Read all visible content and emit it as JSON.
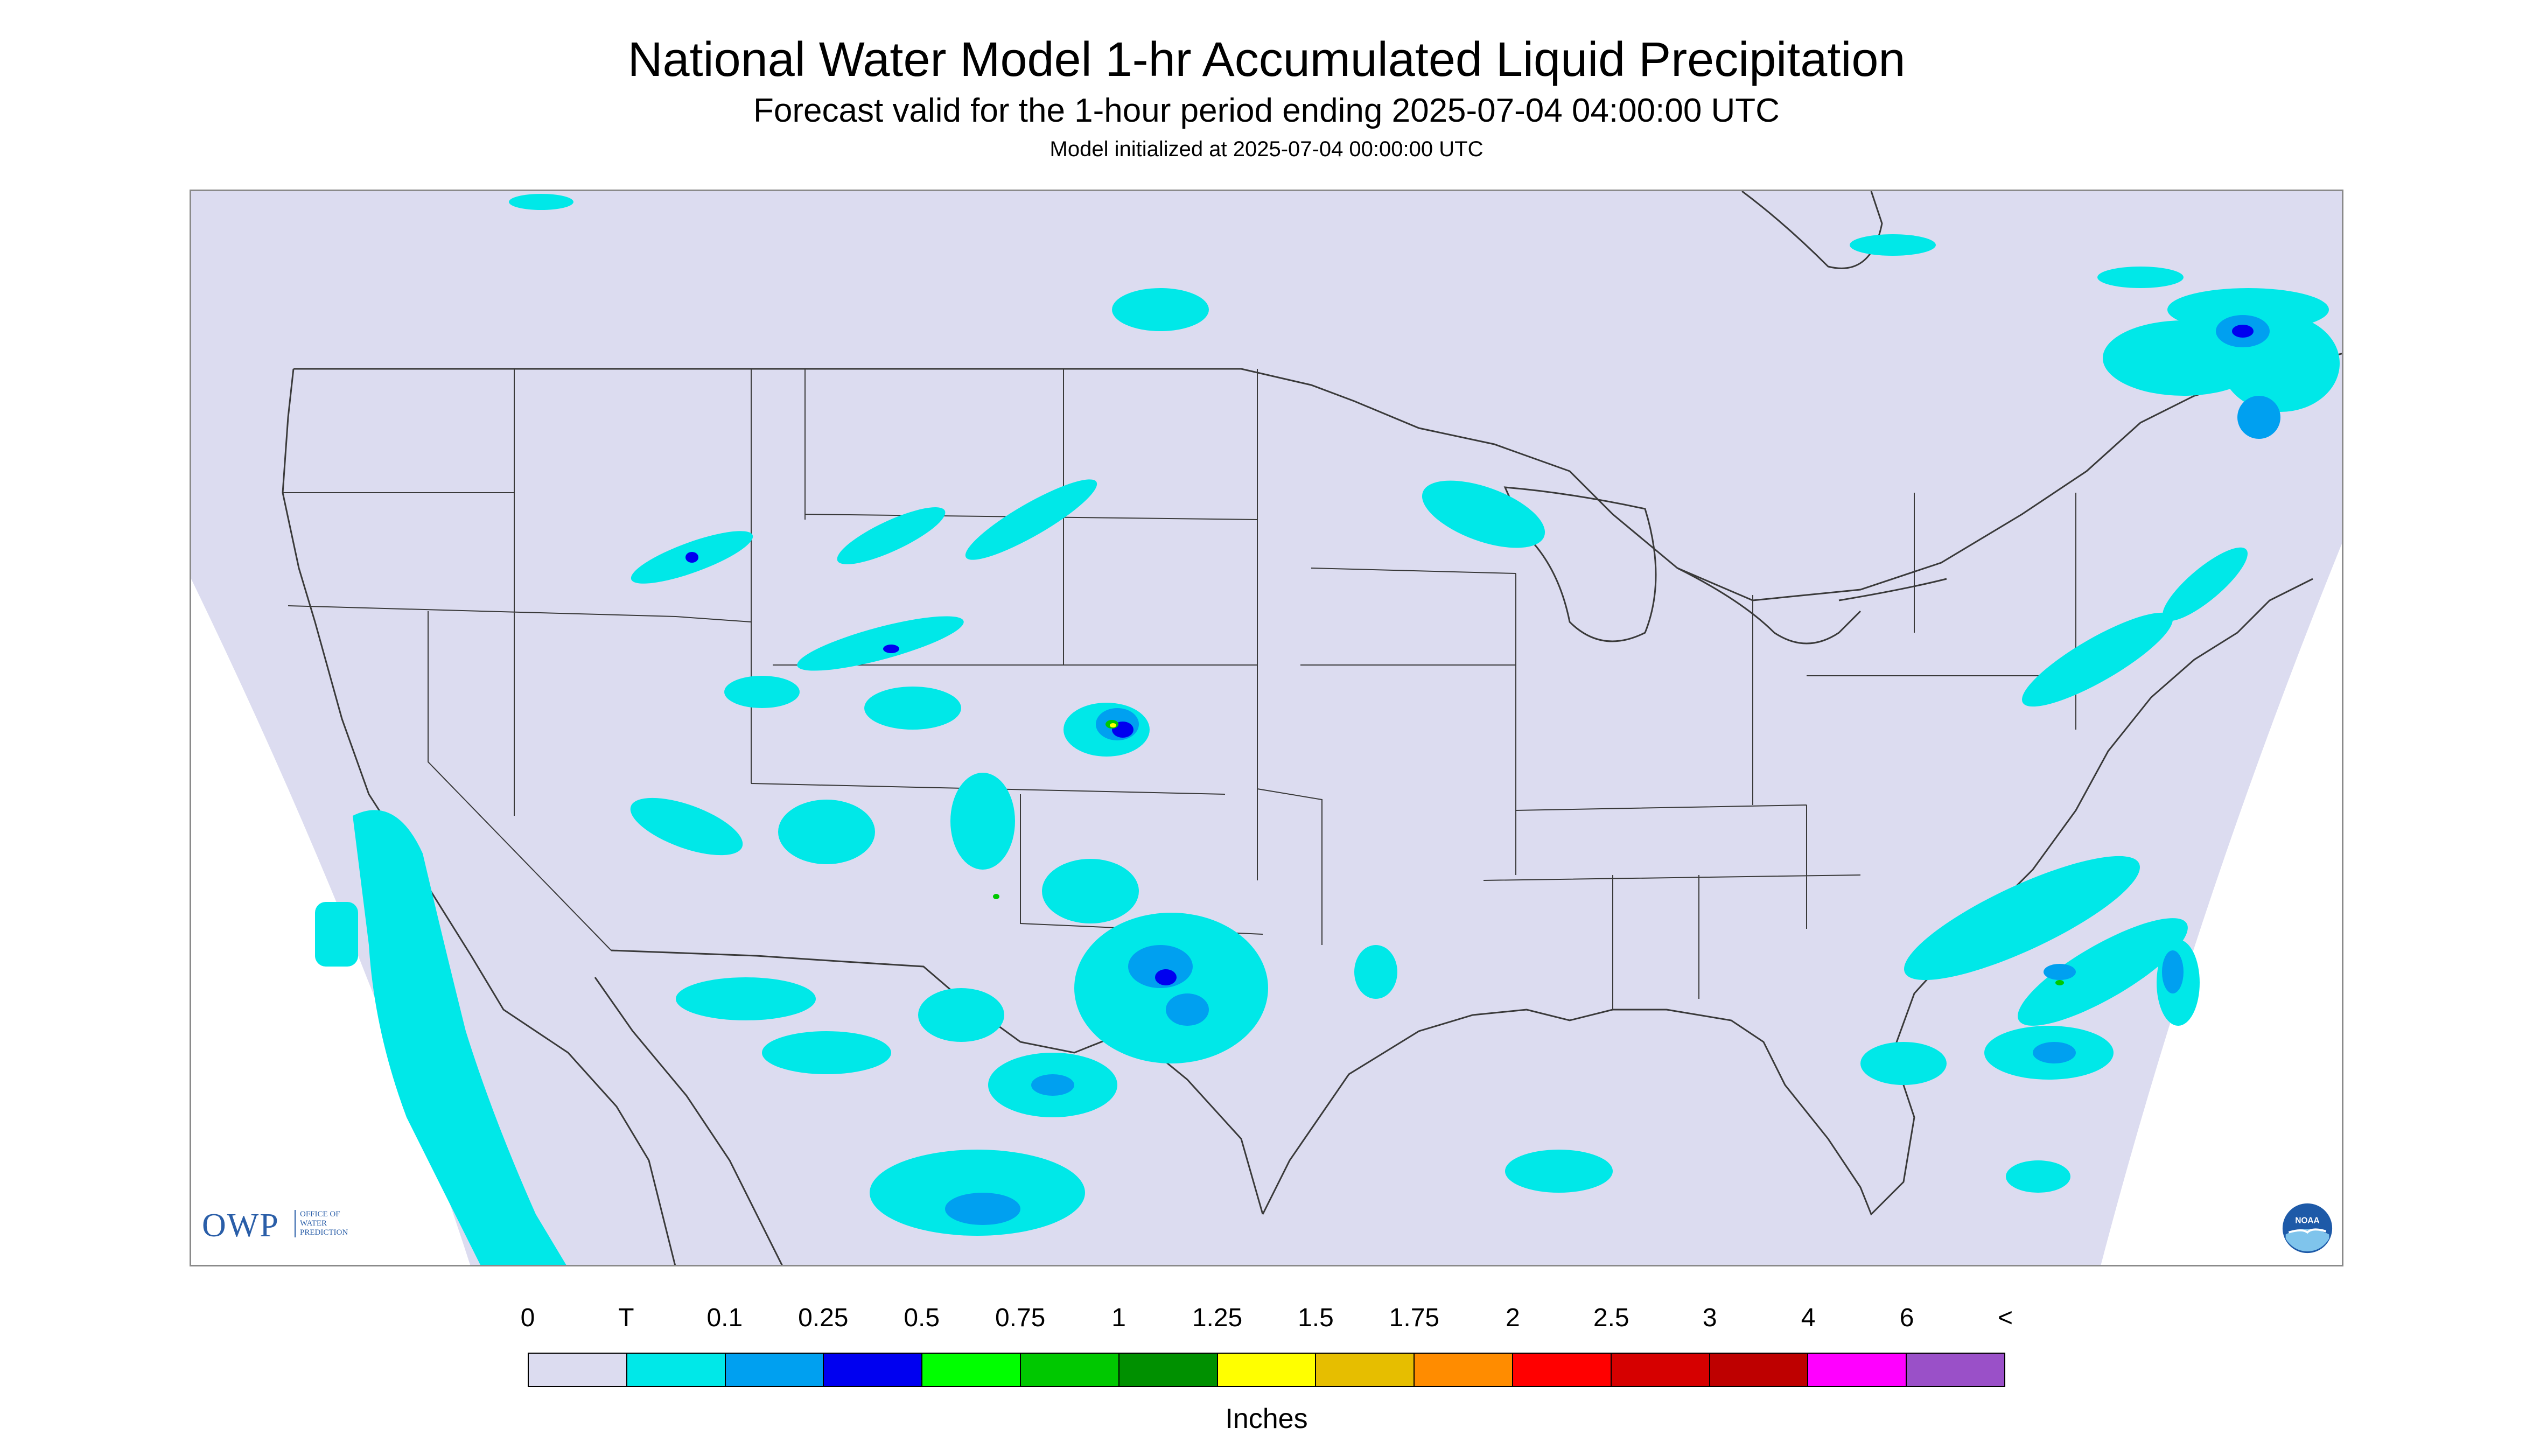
{
  "header": {
    "title": "National Water Model 1-hr Accumulated Liquid Precipitation",
    "subtitle": "Forecast valid for the 1-hour period ending 2025-07-04 04:00:00 UTC",
    "init_line": "Model initialized at 2025-07-04 00:00:00 UTC"
  },
  "logos": {
    "owp_text": "OWP",
    "owp_sub": [
      "OFFICE OF",
      "WATER",
      "PREDICTION"
    ],
    "noaa_text": "NOAA"
  },
  "legend": {
    "labels": [
      "0",
      "T",
      "0.1",
      "0.25",
      "0.5",
      "0.75",
      "1",
      "1.25",
      "1.5",
      "1.75",
      "2",
      "2.5",
      "3",
      "4",
      "6",
      "<"
    ],
    "colors": [
      "#dcdcf0",
      "#00e8e8",
      "#00a0f0",
      "#0000f0",
      "#00ff00",
      "#00c800",
      "#009000",
      "#ffff00",
      "#e6be00",
      "#ff8c00",
      "#ff0000",
      "#d60000",
      "#be0000",
      "#ff00ff",
      "#9a50c8"
    ],
    "units": "Inches"
  },
  "map_colors": {
    "background": "#dcdcf0",
    "trace": "#00e8e8",
    "light": "#00a0f0",
    "moderate": "#0000f0",
    "heavy": "#00c800",
    "extreme": "#ffff00",
    "boundary": "#3a3a3a"
  }
}
